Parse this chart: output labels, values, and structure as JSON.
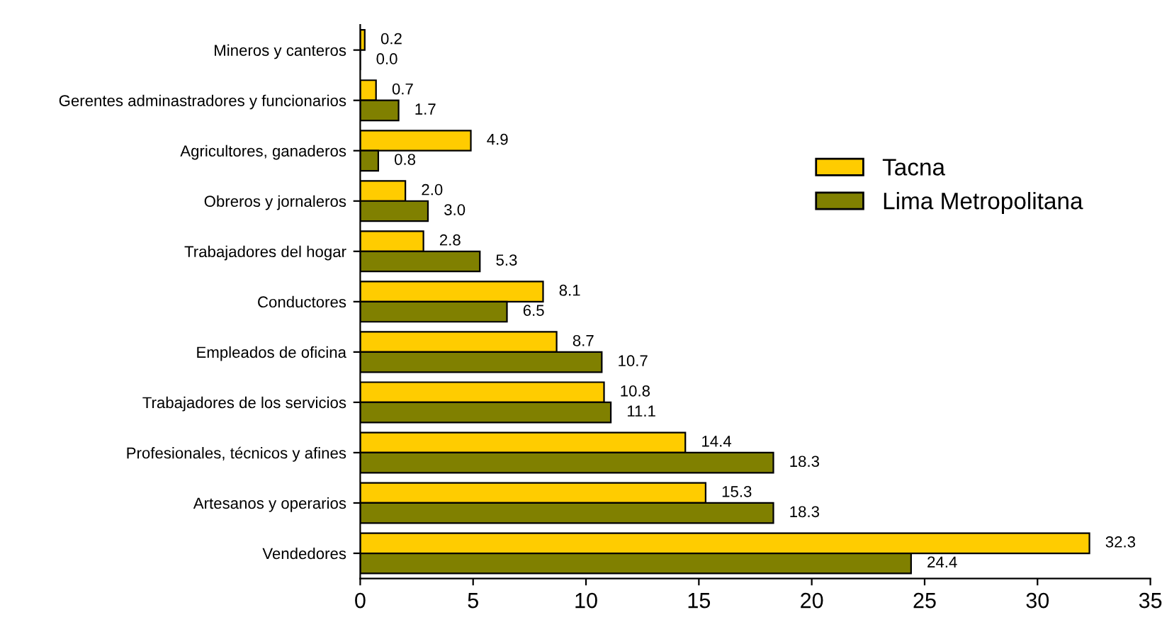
{
  "chart_data": {
    "type": "bar",
    "orientation": "horizontal",
    "categories": [
      "Mineros y canteros",
      "Gerentes adminastradores y funcionarios",
      "Agricultores, ganaderos",
      "Obreros y jornaleros",
      "Trabajadores del hogar",
      "Conductores",
      "Empleados de oficina",
      "Trabajadores de los servicios",
      "Profesionales, técnicos y afines",
      "Artesanos y operarios",
      "Vendedores"
    ],
    "series": [
      {
        "name": "Tacna",
        "color": "#ffcc00",
        "values": [
          0.2,
          0.7,
          4.9,
          2.0,
          2.8,
          8.1,
          8.7,
          10.8,
          14.4,
          15.3,
          32.3
        ],
        "value_labels": [
          "0.2",
          "0.7",
          "4.9",
          "2.0",
          "2.8",
          "8.1",
          "8.7",
          "10.8",
          "14.4",
          "15.3",
          "32.3"
        ]
      },
      {
        "name": "Lima Metropolitana",
        "color": "#808000",
        "values": [
          0.0,
          1.7,
          0.8,
          3.0,
          5.3,
          6.5,
          10.7,
          11.1,
          18.3,
          18.3,
          24.4
        ],
        "value_labels": [
          "0.0",
          "1.7",
          "0.8",
          "3.0",
          "5.3",
          "6.5",
          "10.7",
          "11.1",
          "18.3",
          "18.3",
          "24.4"
        ]
      }
    ],
    "xlim": [
      0,
      35
    ],
    "xticks": [
      0,
      5,
      10,
      15,
      20,
      25,
      30,
      35
    ],
    "legend": "top right",
    "grid": false
  }
}
